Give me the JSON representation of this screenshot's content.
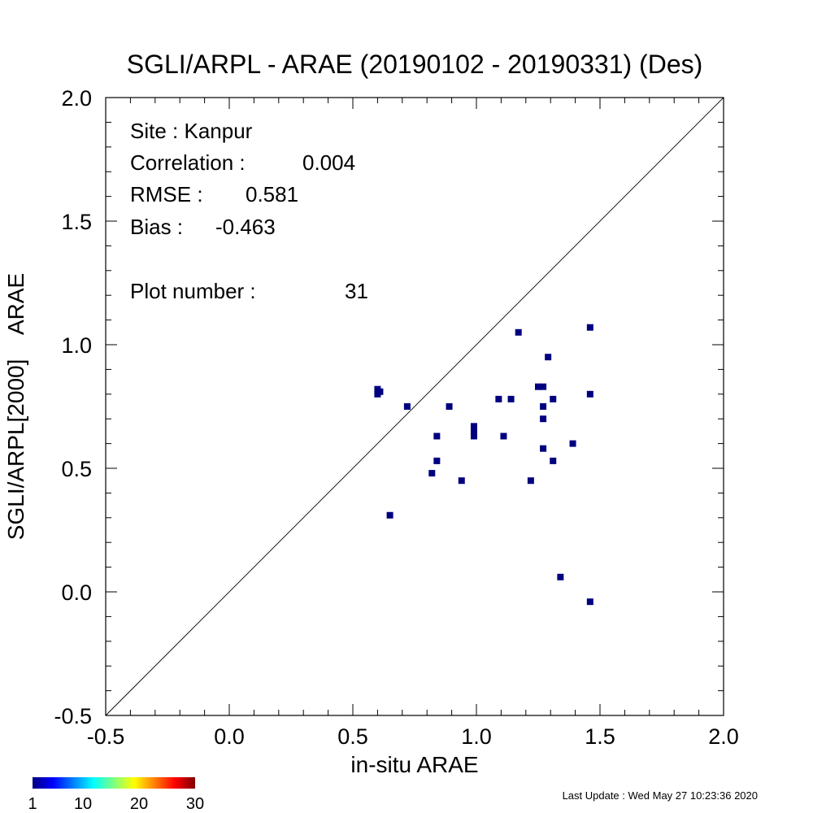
{
  "chart_data": {
    "type": "scatter",
    "title": "SGLI/ARPL - ARAE (20190102 - 20190331) (Des)",
    "xlabel": "in-situ ARAE",
    "ylabel": "SGLI/ARPL[2000]    ARAE",
    "xlim": [
      -0.5,
      2.0
    ],
    "ylim": [
      -0.5,
      2.0
    ],
    "x_ticks": [
      "-0.5",
      "0.0",
      "0.5",
      "1.0",
      "1.5",
      "2.0"
    ],
    "y_ticks": [
      "-0.5",
      "0.0",
      "0.5",
      "1.0",
      "1.5",
      "2.0"
    ],
    "reference_line": "1:1",
    "grid": false,
    "marker_color": "#00007f",
    "points": [
      {
        "x": 0.6,
        "y": 0.82
      },
      {
        "x": 0.6,
        "y": 0.8
      },
      {
        "x": 0.65,
        "y": 0.31
      },
      {
        "x": 0.72,
        "y": 0.75
      },
      {
        "x": 0.82,
        "y": 0.48
      },
      {
        "x": 0.84,
        "y": 0.63
      },
      {
        "x": 0.84,
        "y": 0.53
      },
      {
        "x": 0.89,
        "y": 0.75
      },
      {
        "x": 0.94,
        "y": 0.45
      },
      {
        "x": 0.99,
        "y": 0.67
      },
      {
        "x": 0.99,
        "y": 0.65
      },
      {
        "x": 0.99,
        "y": 0.63
      },
      {
        "x": 1.09,
        "y": 0.78
      },
      {
        "x": 1.11,
        "y": 0.63
      },
      {
        "x": 1.14,
        "y": 0.78
      },
      {
        "x": 1.17,
        "y": 1.05
      },
      {
        "x": 1.22,
        "y": 0.45
      },
      {
        "x": 1.25,
        "y": 0.83
      },
      {
        "x": 1.27,
        "y": 0.83
      },
      {
        "x": 1.27,
        "y": 0.75
      },
      {
        "x": 1.27,
        "y": 0.7
      },
      {
        "x": 1.27,
        "y": 0.58
      },
      {
        "x": 1.29,
        "y": 0.95
      },
      {
        "x": 1.31,
        "y": 0.78
      },
      {
        "x": 1.31,
        "y": 0.53
      },
      {
        "x": 1.34,
        "y": 0.06
      },
      {
        "x": 1.39,
        "y": 0.6
      },
      {
        "x": 1.46,
        "y": 1.07
      },
      {
        "x": 1.46,
        "y": 0.8
      },
      {
        "x": 1.46,
        "y": -0.04
      },
      {
        "x": 0.61,
        "y": 0.81
      }
    ],
    "stats": {
      "site": "Site : Kanpur",
      "correlation_label": "Correlation :",
      "correlation_value": "0.004",
      "rmse_label": "RMSE :",
      "rmse_value": "0.581",
      "bias_label": "Bias :",
      "bias_value": "-0.463",
      "plot_number_label": "Plot number :",
      "plot_number_value": "31"
    },
    "colorbar": {
      "ticks": [
        "1",
        "10",
        "20",
        "30"
      ],
      "tick_values": [
        1,
        10,
        20,
        30
      ],
      "range": [
        1,
        30
      ],
      "colors": [
        "#00007f",
        "#0000ff",
        "#007fff",
        "#00ffff",
        "#7fff7f",
        "#ffff00",
        "#ff7f00",
        "#ff0000",
        "#7f0000"
      ]
    }
  },
  "footer": {
    "last_update": "Last Update : Wed May 27 10:23:36 2020"
  }
}
